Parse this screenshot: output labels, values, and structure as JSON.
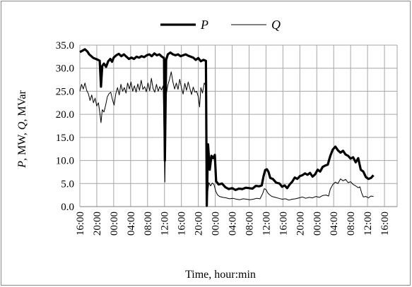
{
  "chart_data": {
    "type": "line",
    "title": "",
    "xlabel": "Time, hour:min",
    "ylabel_parts": [
      {
        "text": "P",
        "italic": true
      },
      {
        "text": ", MW, ",
        "italic": false
      },
      {
        "text": "Q",
        "italic": true
      },
      {
        "text": ", MVar",
        "italic": false
      }
    ],
    "ylim": [
      0,
      35
    ],
    "y_ticks": [
      "0.0",
      "5.0",
      "10.0",
      "15.0",
      "20.0",
      "25.0",
      "30.0",
      "35.0"
    ],
    "x_ticks": [
      "16:00",
      "20:00",
      "00:00",
      "04:00",
      "08:00",
      "12:00",
      "16:00",
      "20:00",
      "00:00",
      "04:00",
      "08:00",
      "12:00",
      "16:00",
      "20:00",
      "00:00",
      "04:00",
      "08:00",
      "12:00",
      "16:00"
    ],
    "x_units": "hours from first tick (16:00), 4 h per tick",
    "x_range": [
      0,
      75
    ],
    "grid": true,
    "legend_position": "top-center",
    "series": [
      {
        "name": "P",
        "line_weight": "thick",
        "color": "#000000",
        "points": [
          [
            0,
            33.5
          ],
          [
            0.6,
            33.8
          ],
          [
            1.2,
            34.1
          ],
          [
            1.8,
            33.6
          ],
          [
            2.2,
            33.0
          ],
          [
            2.7,
            32.6
          ],
          [
            3.2,
            32.2
          ],
          [
            3.8,
            32.0
          ],
          [
            4.3,
            31.8
          ],
          [
            4.7,
            31.6
          ],
          [
            5.0,
            26.0
          ],
          [
            5.3,
            30.5
          ],
          [
            5.7,
            31.0
          ],
          [
            6.2,
            30.3
          ],
          [
            6.7,
            31.5
          ],
          [
            7.2,
            32.0
          ],
          [
            7.6,
            31.4
          ],
          [
            8.0,
            32.3
          ],
          [
            8.6,
            32.8
          ],
          [
            9.2,
            33.1
          ],
          [
            9.8,
            32.6
          ],
          [
            10.4,
            33.0
          ],
          [
            11.0,
            32.5
          ],
          [
            11.6,
            32.0
          ],
          [
            12.2,
            32.3
          ],
          [
            12.8,
            32.0
          ],
          [
            13.4,
            32.5
          ],
          [
            14.0,
            32.3
          ],
          [
            14.6,
            32.6
          ],
          [
            15.2,
            32.4
          ],
          [
            15.8,
            32.8
          ],
          [
            16.4,
            33.0
          ],
          [
            17.0,
            32.6
          ],
          [
            17.6,
            33.2
          ],
          [
            18.2,
            32.8
          ],
          [
            18.8,
            33.0
          ],
          [
            19.4,
            32.5
          ],
          [
            19.9,
            32.2
          ],
          [
            20.1,
            10.0
          ],
          [
            20.4,
            31.8
          ],
          [
            20.8,
            33.0
          ],
          [
            21.4,
            33.4
          ],
          [
            22.0,
            33.0
          ],
          [
            22.6,
            32.8
          ],
          [
            23.2,
            33.0
          ],
          [
            23.8,
            32.6
          ],
          [
            24.4,
            32.8
          ],
          [
            25.0,
            33.0
          ],
          [
            25.6,
            32.7
          ],
          [
            26.2,
            32.5
          ],
          [
            26.8,
            32.3
          ],
          [
            27.4,
            31.8
          ],
          [
            28.0,
            32.2
          ],
          [
            28.6,
            31.5
          ],
          [
            29.2,
            31.8
          ],
          [
            29.8,
            31.6
          ],
          [
            30.0,
            0.2
          ],
          [
            30.3,
            13.5
          ],
          [
            30.7,
            8.0
          ],
          [
            31.1,
            11.0
          ],
          [
            31.5,
            10.5
          ],
          [
            31.9,
            11.2
          ],
          [
            32.2,
            5.5
          ],
          [
            32.8,
            4.8
          ],
          [
            33.6,
            5.0
          ],
          [
            34.4,
            4.2
          ],
          [
            35.2,
            3.8
          ],
          [
            36.0,
            4.0
          ],
          [
            36.8,
            3.6
          ],
          [
            37.6,
            3.9
          ],
          [
            38.4,
            3.8
          ],
          [
            39.2,
            4.1
          ],
          [
            40.0,
            4.0
          ],
          [
            40.8,
            3.9
          ],
          [
            41.6,
            4.5
          ],
          [
            42.4,
            4.4
          ],
          [
            43.0,
            4.6
          ],
          [
            43.4,
            6.5
          ],
          [
            43.8,
            7.9
          ],
          [
            44.2,
            8.1
          ],
          [
            44.6,
            7.5
          ],
          [
            45.0,
            6.2
          ],
          [
            45.6,
            6.0
          ],
          [
            46.4,
            5.2
          ],
          [
            47.2,
            5.0
          ],
          [
            47.8,
            4.3
          ],
          [
            48.4,
            4.6
          ],
          [
            49.0,
            4.0
          ],
          [
            49.6,
            4.8
          ],
          [
            50.2,
            5.4
          ],
          [
            50.8,
            6.3
          ],
          [
            51.4,
            6.0
          ],
          [
            52.0,
            6.6
          ],
          [
            52.6,
            6.8
          ],
          [
            53.2,
            7.2
          ],
          [
            53.8,
            6.9
          ],
          [
            54.4,
            7.3
          ],
          [
            55.0,
            6.5
          ],
          [
            55.6,
            7.0
          ],
          [
            56.2,
            8.0
          ],
          [
            56.8,
            7.6
          ],
          [
            57.4,
            8.6
          ],
          [
            58.0,
            8.9
          ],
          [
            58.6,
            9.1
          ],
          [
            59.2,
            11.0
          ],
          [
            59.8,
            12.4
          ],
          [
            60.4,
            13.0
          ],
          [
            61.0,
            12.2
          ],
          [
            61.6,
            11.7
          ],
          [
            62.2,
            12.1
          ],
          [
            62.8,
            11.3
          ],
          [
            63.4,
            11.0
          ],
          [
            64.0,
            10.4
          ],
          [
            64.6,
            10.7
          ],
          [
            65.2,
            9.6
          ],
          [
            65.8,
            10.5
          ],
          [
            66.4,
            8.0
          ],
          [
            67.0,
            7.6
          ],
          [
            67.6,
            6.4
          ],
          [
            68.2,
            6.0
          ],
          [
            68.8,
            6.2
          ],
          [
            69.4,
            6.8
          ]
        ]
      },
      {
        "name": "Q",
        "line_weight": "thin",
        "color": "#000000",
        "points": [
          [
            0,
            25.0
          ],
          [
            0.4,
            26.5
          ],
          [
            0.8,
            25.5
          ],
          [
            1.2,
            26.8
          ],
          [
            1.6,
            25.2
          ],
          [
            2.0,
            24.5
          ],
          [
            2.4,
            23.0
          ],
          [
            2.8,
            24.2
          ],
          [
            3.2,
            22.5
          ],
          [
            3.6,
            23.5
          ],
          [
            4.0,
            21.8
          ],
          [
            4.4,
            22.5
          ],
          [
            4.8,
            19.8
          ],
          [
            5.0,
            18.2
          ],
          [
            5.3,
            21.0
          ],
          [
            5.7,
            20.5
          ],
          [
            6.1,
            22.0
          ],
          [
            6.5,
            23.8
          ],
          [
            6.9,
            24.5
          ],
          [
            7.3,
            24.8
          ],
          [
            7.7,
            23.2
          ],
          [
            8.1,
            22.0
          ],
          [
            8.5,
            24.5
          ],
          [
            8.9,
            25.8
          ],
          [
            9.3,
            24.2
          ],
          [
            9.7,
            26.5
          ],
          [
            10.1,
            25.0
          ],
          [
            10.5,
            25.8
          ],
          [
            10.9,
            24.6
          ],
          [
            11.3,
            26.8
          ],
          [
            11.7,
            25.5
          ],
          [
            12.1,
            27.0
          ],
          [
            12.5,
            25.0
          ],
          [
            12.9,
            26.2
          ],
          [
            13.3,
            24.8
          ],
          [
            13.7,
            26.6
          ],
          [
            14.1,
            25.2
          ],
          [
            14.5,
            27.4
          ],
          [
            14.9,
            25.4
          ],
          [
            15.3,
            26.0
          ],
          [
            15.7,
            24.9
          ],
          [
            16.1,
            26.8
          ],
          [
            16.5,
            25.1
          ],
          [
            16.9,
            27.8
          ],
          [
            17.3,
            25.6
          ],
          [
            17.7,
            24.8
          ],
          [
            18.1,
            26.5
          ],
          [
            18.5,
            25.0
          ],
          [
            18.9,
            26.0
          ],
          [
            19.3,
            25.3
          ],
          [
            19.7,
            26.2
          ],
          [
            20.1,
            5.3
          ],
          [
            20.4,
            24.2
          ],
          [
            20.8,
            26.3
          ],
          [
            21.2,
            27.6
          ],
          [
            21.6,
            29.2
          ],
          [
            22.0,
            27.0
          ],
          [
            22.4,
            25.5
          ],
          [
            22.8,
            26.8
          ],
          [
            23.2,
            25.4
          ],
          [
            23.6,
            27.6
          ],
          [
            24.0,
            25.8
          ],
          [
            24.4,
            24.4
          ],
          [
            24.8,
            26.7
          ],
          [
            25.2,
            25.2
          ],
          [
            25.6,
            27.0
          ],
          [
            26.0,
            25.6
          ],
          [
            26.4,
            24.3
          ],
          [
            26.8,
            25.9
          ],
          [
            27.2,
            24.8
          ],
          [
            27.6,
            25.0
          ],
          [
            28.0,
            23.8
          ],
          [
            28.3,
            21.6
          ],
          [
            28.6,
            25.8
          ],
          [
            29.0,
            24.6
          ],
          [
            29.4,
            26.8
          ],
          [
            29.8,
            26.2
          ],
          [
            30.0,
            0.0
          ],
          [
            30.2,
            3.0
          ],
          [
            30.5,
            5.2
          ],
          [
            30.9,
            4.5
          ],
          [
            31.3,
            5.1
          ],
          [
            31.7,
            4.8
          ],
          [
            32.1,
            3.4
          ],
          [
            32.5,
            2.6
          ],
          [
            33.0,
            2.2
          ],
          [
            33.8,
            2.0
          ],
          [
            34.6,
            1.9
          ],
          [
            35.4,
            1.7
          ],
          [
            36.2,
            1.8
          ],
          [
            37.0,
            1.6
          ],
          [
            37.8,
            1.5
          ],
          [
            38.6,
            1.7
          ],
          [
            39.4,
            1.6
          ],
          [
            40.2,
            1.5
          ],
          [
            41.0,
            1.6
          ],
          [
            41.8,
            1.8
          ],
          [
            42.6,
            1.7
          ],
          [
            43.2,
            2.8
          ],
          [
            43.6,
            3.9
          ],
          [
            44.0,
            3.7
          ],
          [
            44.4,
            3.0
          ],
          [
            44.8,
            2.6
          ],
          [
            45.4,
            2.2
          ],
          [
            46.2,
            2.0
          ],
          [
            47.0,
            1.8
          ],
          [
            47.8,
            1.6
          ],
          [
            48.6,
            1.7
          ],
          [
            49.4,
            1.4
          ],
          [
            50.2,
            1.6
          ],
          [
            51.0,
            1.7
          ],
          [
            51.8,
            1.9
          ],
          [
            52.6,
            2.1
          ],
          [
            53.4,
            1.8
          ],
          [
            54.2,
            2.0
          ],
          [
            55.0,
            1.9
          ],
          [
            55.8,
            2.2
          ],
          [
            56.6,
            2.0
          ],
          [
            57.4,
            2.4
          ],
          [
            58.2,
            2.5
          ],
          [
            58.8,
            2.3
          ],
          [
            59.2,
            3.8
          ],
          [
            59.8,
            4.8
          ],
          [
            60.4,
            5.3
          ],
          [
            61.0,
            5.0
          ],
          [
            61.6,
            6.0
          ],
          [
            62.2,
            5.6
          ],
          [
            62.8,
            5.9
          ],
          [
            63.4,
            5.2
          ],
          [
            64.0,
            5.4
          ],
          [
            64.6,
            4.8
          ],
          [
            65.2,
            4.5
          ],
          [
            65.8,
            4.1
          ],
          [
            66.2,
            4.3
          ],
          [
            66.6,
            3.0
          ],
          [
            67.0,
            2.1
          ],
          [
            67.6,
            2.2
          ],
          [
            68.2,
            1.9
          ],
          [
            68.8,
            2.3
          ],
          [
            69.4,
            2.2
          ]
        ]
      }
    ]
  }
}
